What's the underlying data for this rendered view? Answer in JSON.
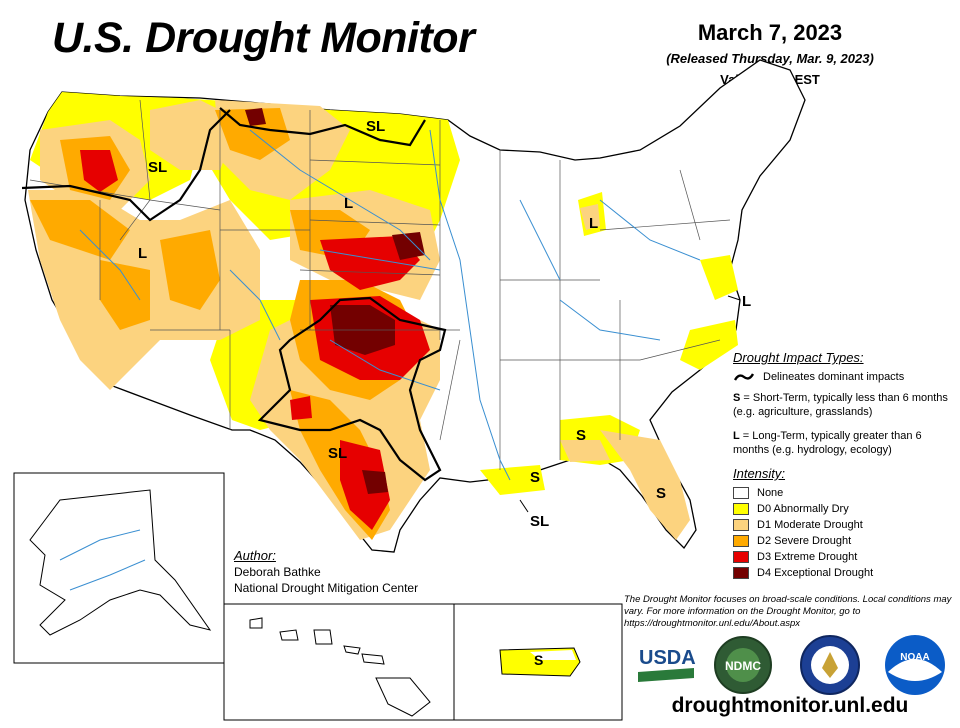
{
  "header": {
    "title": "U.S. Drought Monitor",
    "date": "March 7, 2023",
    "released": "(Released Thursday, Mar. 9, 2023)",
    "valid": "Valid 7 a.m. EST"
  },
  "map_labels": {
    "sl_northwest": "SL",
    "sl_montana": "SL",
    "l_wyoming": "L",
    "l_nevada": "L",
    "l_michigan": "L",
    "l_maryland": "L",
    "sl_texas": "SL",
    "s_georgia": "S",
    "s_florida": "S",
    "s_gulf": "S",
    "sl_gulf": "SL",
    "s_puerto_rico": "S"
  },
  "impact_types": {
    "heading": "Drought Impact Types:",
    "delineates": "Delineates dominant impacts",
    "short_term_key": "S",
    "short_term_text": " = Short-Term, typically less than 6 months (e.g. agriculture, grasslands)",
    "long_term_key": "L",
    "long_term_text": " = Long-Term, typically greater than 6 months (e.g. hydrology, ecology)"
  },
  "intensity": {
    "heading": "Intensity:",
    "levels": [
      {
        "label": "None",
        "color": "#ffffff"
      },
      {
        "label": "D0 Abnormally Dry",
        "color": "#ffff00"
      },
      {
        "label": "D1 Moderate Drought",
        "color": "#fcd37f"
      },
      {
        "label": "D2 Severe Drought",
        "color": "#ffaa00"
      },
      {
        "label": "D3 Extreme Drought",
        "color": "#e60000"
      },
      {
        "label": "D4 Exceptional Drought",
        "color": "#730000"
      }
    ]
  },
  "author": {
    "heading": "Author:",
    "name": "Deborah Bathke",
    "org": "National Drought Mitigation Center"
  },
  "footnote": "The Drought Monitor focuses on broad-scale conditions. Local conditions may vary. For more information on the Drought Monitor, go to https://droughtmonitor.unl.edu/About.aspx",
  "logos": {
    "usda": "USDA",
    "ndmc": "NDMC",
    "noaa": "NOAA"
  },
  "url": "droughtmonitor.unl.edu"
}
